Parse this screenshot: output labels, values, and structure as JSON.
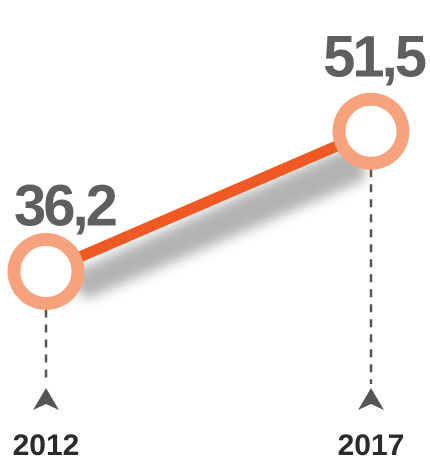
{
  "colors": {
    "line": "#ef5a24",
    "marker": "#f6a27c",
    "value_text": "#5f5f5f",
    "year_text": "#2b2b2b",
    "guide": "#555555"
  },
  "chart_data": {
    "type": "line",
    "x": [
      "2012",
      "2017"
    ],
    "series": [
      {
        "values": [
          36.2,
          51.5
        ],
        "labels": [
          "36,2",
          "51,5"
        ]
      }
    ],
    "ylim": [
      20,
      56
    ],
    "grid": false,
    "title": "",
    "xlabel": "",
    "ylabel": ""
  }
}
